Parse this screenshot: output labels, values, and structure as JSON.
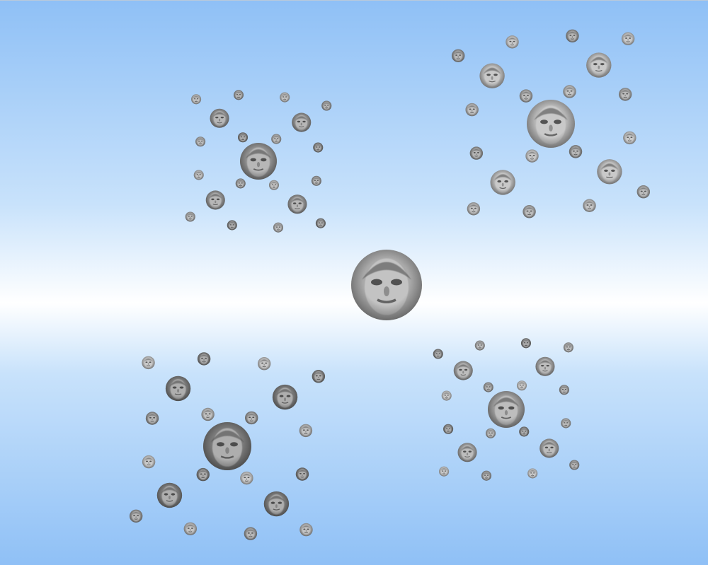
{
  "view": {
    "background_colors": {
      "edge": "#8fc0f6",
      "mid": "#c8e2fb",
      "horizon": "#ffffff"
    },
    "face_tones": [
      "#a9a9a9",
      "#8f8f8f",
      "#b6b6b6",
      "#7a7a7a",
      "#9c9c9c"
    ]
  },
  "hierarchy": {
    "root": "mean-face",
    "levels": 4,
    "clusters": [
      "upper-left",
      "upper-right",
      "lower-left",
      "lower-right"
    ]
  }
}
